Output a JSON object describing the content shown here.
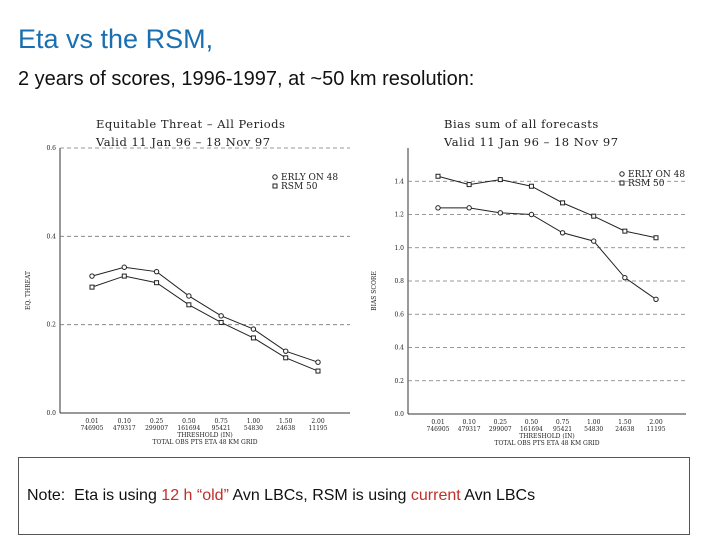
{
  "slide": {
    "title": "Eta vs the RSM,",
    "subtitle": "2 years of scores, 1996-1997, at ~50 km resolution:"
  },
  "note": {
    "part1": "Note:  Eta is using ",
    "part2": "12 h “old”",
    "part3": " Avn LBCs, RSM is using ",
    "part4": "current",
    "part5": " Avn LBCs",
    "highlight_color": "#c0302a"
  },
  "chart_data": [
    {
      "type": "line",
      "title": "Equitable Threat  –  All Periods",
      "subtitle": "Valid 11 Jan 96  –  18 Nov 97",
      "ylabel": "EQ. THREAT",
      "xlabel": "THRESHOLD (IN)",
      "xlabel2": "TOTAL OBS PTS ETA 48 KM GRID",
      "categories": [
        "0.01",
        "0.10",
        "0.25",
        "0.50",
        "0.75",
        "1.00",
        "1.50",
        "2.00"
      ],
      "counts": [
        "746905",
        "479317",
        "299007",
        "161694",
        "95421",
        "54830",
        "24638",
        "11195"
      ],
      "ylim": [
        0,
        0.6
      ],
      "yticks": [
        "0.0",
        "0.2",
        "0.4",
        "0.6"
      ],
      "grid": true,
      "legend_position": "top-right",
      "series": [
        {
          "name": "ERLY ON 48",
          "marker": "circle",
          "values": [
            0.31,
            0.33,
            0.32,
            0.265,
            0.22,
            0.19,
            0.14,
            0.115
          ]
        },
        {
          "name": "RSM 50",
          "marker": "square",
          "values": [
            0.285,
            0.31,
            0.295,
            0.245,
            0.205,
            0.17,
            0.125,
            0.095
          ]
        }
      ]
    },
    {
      "type": "line",
      "title": "Bias sum of all forecasts",
      "subtitle": "Valid 11 Jan 96  –  18 Nov 97",
      "ylabel": "BIAS SCORE",
      "xlabel": "THRESHOLD (IN)",
      "xlabel2": "TOTAL OBS PTS ETA 48 KM GRID",
      "categories": [
        "0.01",
        "0.10",
        "0.25",
        "0.50",
        "0.75",
        "1.00",
        "1.50",
        "2.00"
      ],
      "counts": [
        "746905",
        "479317",
        "299007",
        "161694",
        "95421",
        "54830",
        "24638",
        "11195"
      ],
      "ylim": [
        0,
        1.6
      ],
      "yticks": [
        "0.0",
        "0.2",
        "0.4",
        "0.6",
        "0.8",
        "1.0",
        "1.2",
        "1.4"
      ],
      "grid": true,
      "legend_position": "top-right",
      "series": [
        {
          "name": "ERLY ON 48",
          "marker": "circle",
          "values": [
            1.24,
            1.24,
            1.21,
            1.2,
            1.09,
            1.04,
            0.82,
            0.69
          ]
        },
        {
          "name": "RSM 50",
          "marker": "square",
          "values": [
            1.43,
            1.38,
            1.41,
            1.37,
            1.27,
            1.19,
            1.1,
            1.06
          ]
        }
      ]
    }
  ]
}
